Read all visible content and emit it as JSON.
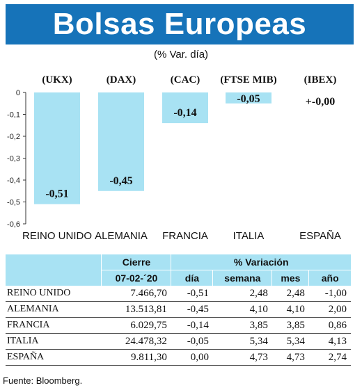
{
  "header": {
    "title": "Bolsas Europeas",
    "subtitle": "(% Var. día)"
  },
  "chart_data": {
    "type": "bar",
    "indices": [
      "(UKX)",
      "(DAX)",
      "(CAC)",
      "(FTSE MIB)",
      "(IBEX)"
    ],
    "categories": [
      "REINO UNIDO",
      "ALEMANIA",
      "FRANCIA",
      "ITALIA",
      "ESPAÑA"
    ],
    "values": [
      -0.51,
      -0.45,
      -0.14,
      -0.05,
      0.0
    ],
    "value_labels": [
      "-0,51",
      "-0,45",
      "-0,14",
      "-0,05",
      "+-0,00"
    ],
    "yticks": [
      "0",
      "-0,1",
      "-0,2",
      "-0,3",
      "-0,4",
      "-0,5",
      "-0,6"
    ],
    "ylim": [
      -0.6,
      0
    ],
    "bar_color": "#a8e2f3",
    "grid": false
  },
  "table": {
    "group_headers": {
      "close": "Cierre",
      "variation": "% Variación"
    },
    "columns": [
      "07-02-´20",
      "día",
      "semana",
      "mes",
      "año"
    ],
    "rows": [
      {
        "name": "REINO UNIDO",
        "close": "7.466,70",
        "day": "-0,51",
        "week": "2,48",
        "month": "2,48",
        "year": "-1,00"
      },
      {
        "name": "ALEMANIA",
        "close": "13.513,81",
        "day": "-0,45",
        "week": "4,10",
        "month": "4,10",
        "year": "2,00"
      },
      {
        "name": "FRANCIA",
        "close": "6.029,75",
        "day": "-0,14",
        "week": "3,85",
        "month": "3,85",
        "year": "0,86"
      },
      {
        "name": "ITALIA",
        "close": "24.478,32",
        "day": "-0,05",
        "week": "5,34",
        "month": "5,34",
        "year": "4,13"
      },
      {
        "name": "ESPAÑA",
        "close": "9.811,30",
        "day": "0,00",
        "week": "4,73",
        "month": "4,73",
        "year": "2,74"
      }
    ]
  },
  "footer": {
    "source": "Fuente: Bloomberg."
  },
  "colors": {
    "banner": "#1673b9",
    "accent": "#a8e2f3"
  }
}
